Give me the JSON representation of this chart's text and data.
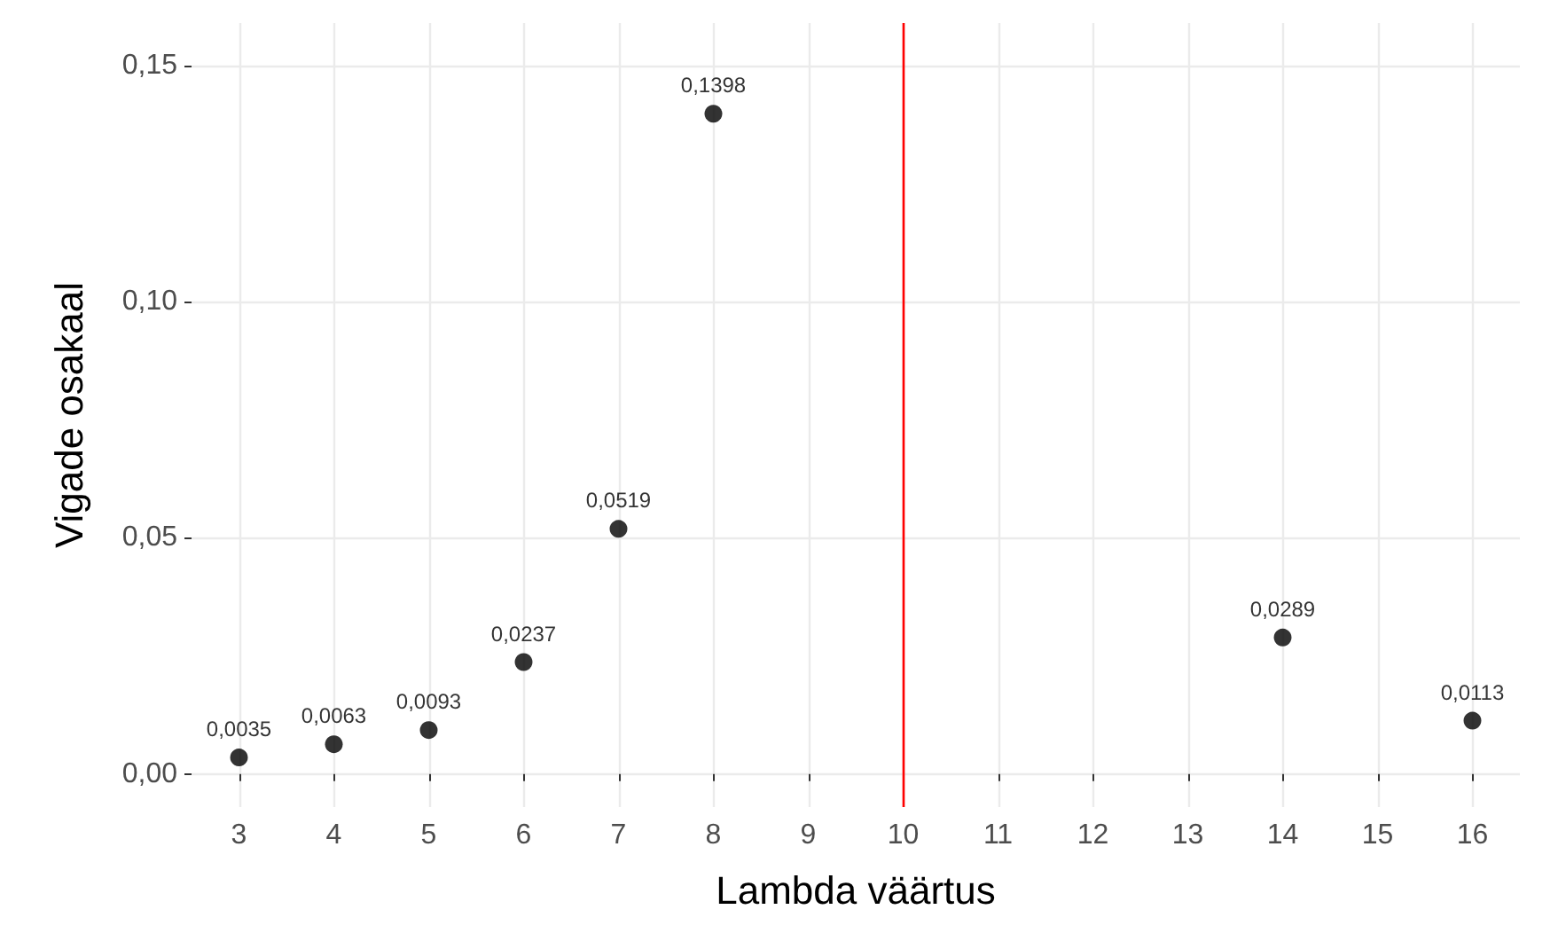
{
  "chart_data": {
    "type": "scatter",
    "xlabel": "Lambda väärtus",
    "ylabel": "Vigade osakaal",
    "x": [
      3,
      4,
      5,
      6,
      7,
      8,
      14,
      16
    ],
    "values": [
      0.0035,
      0.0063,
      0.0093,
      0.0237,
      0.0519,
      0.1398,
      0.0289,
      0.0113
    ],
    "value_labels": [
      "0,0035",
      "0,0063",
      "0,0093",
      "0,0237",
      "0,0519",
      "0,1398",
      "0,0289",
      "0,0113"
    ],
    "color": "#000000",
    "marker": "circle",
    "grid": true,
    "xlim": [
      2.5,
      16.5
    ],
    "xticks": [
      3,
      4,
      5,
      6,
      7,
      8,
      9,
      10,
      11,
      12,
      13,
      14,
      15,
      16
    ],
    "ylim": [
      -0.007,
      0.159
    ],
    "yticks": [
      {
        "value": 0,
        "label": "0,00"
      },
      {
        "value": 0.05,
        "label": "0,05"
      },
      {
        "value": 0.1,
        "label": "0,10"
      },
      {
        "value": 0.15,
        "label": "0,15"
      }
    ],
    "ref_lines": [
      {
        "axis": "x",
        "value": 10,
        "color": "#ff0000"
      }
    ]
  }
}
